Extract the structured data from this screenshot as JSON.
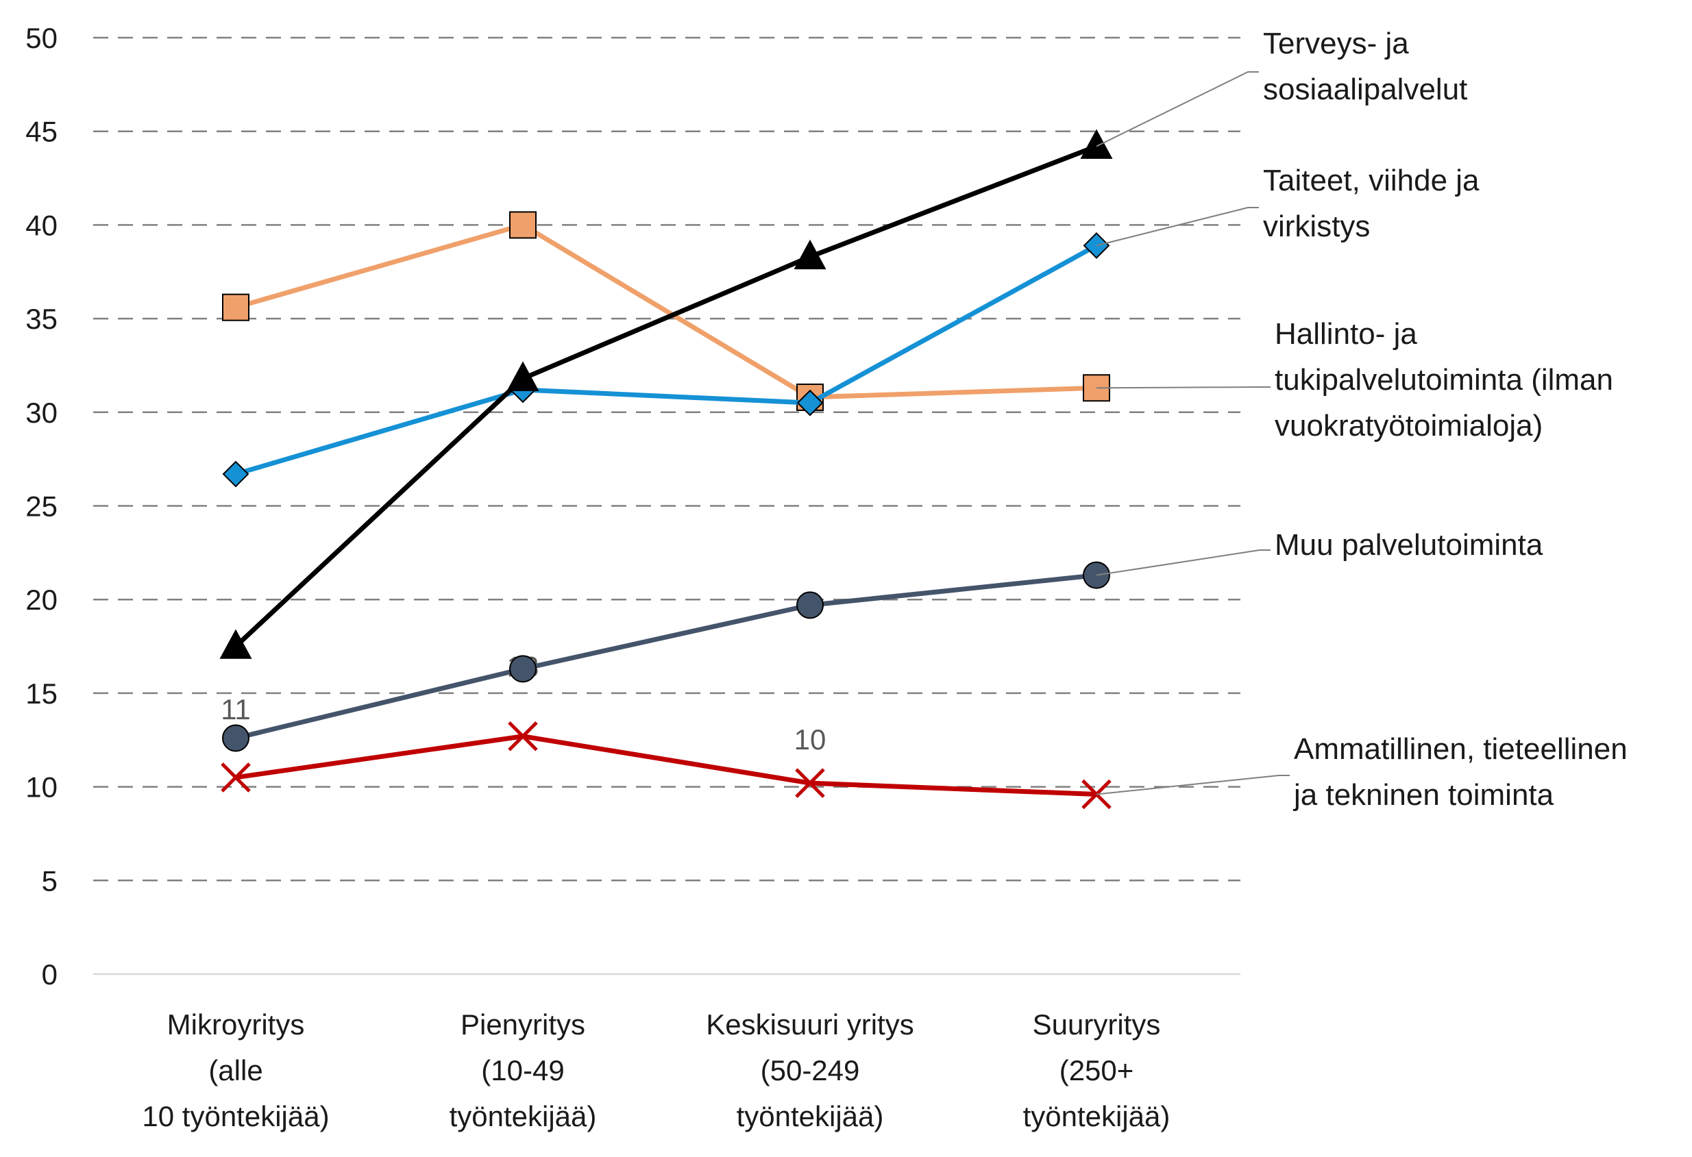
{
  "chart_data": {
    "type": "line",
    "title": "",
    "xlabel": "",
    "ylabel": "",
    "ylim": [
      0,
      50
    ],
    "yticks": [
      0,
      5,
      10,
      15,
      20,
      25,
      30,
      35,
      40,
      45,
      50
    ],
    "grid": true,
    "legend": "right (labels at line ends)",
    "categories": [
      [
        "Mikroyritys",
        "(alle",
        "10 työntekijää)"
      ],
      [
        "Pienyritys",
        "(10-49",
        "työntekijää)"
      ],
      [
        "Keskisuuri yritys",
        "(50-249",
        "työntekijää)"
      ],
      [
        "Suuryritys",
        "(250+",
        "työntekijää)"
      ]
    ],
    "series": [
      {
        "name": "Terveys- ja sosiaalipalvelut",
        "name_lines": [
          "Terveys- ja",
          "sosiaalipalvelut"
        ],
        "values": [
          17.5,
          31.8,
          38.3,
          44.2
        ],
        "color": "#000000",
        "marker": "triangle"
      },
      {
        "name": "Taiteet, viihde ja virkistys",
        "name_lines": [
          "Taiteet, viihde ja",
          "virkistys"
        ],
        "values": [
          26.7,
          31.2,
          30.5,
          38.9
        ],
        "color": "#1591D5",
        "marker": "diamond"
      },
      {
        "name": "Hallinto- ja tukipalvelutoiminta (ilman vuokratyötoimialoja)",
        "name_lines": [
          "Hallinto- ja",
          "tukipalvelutoiminta (ilman",
          "vuokratyötoimialoja)"
        ],
        "values": [
          35.6,
          40.0,
          30.8,
          31.3
        ],
        "color": "#F0A06A",
        "marker": "square"
      },
      {
        "name": "Muu palvelutoiminta",
        "name_lines": [
          "Muu palvelutoiminta"
        ],
        "values": [
          12.6,
          16.3,
          19.7,
          21.3
        ],
        "color": "#44546A",
        "marker": "circle"
      },
      {
        "name": "Ammatillinen, tieteellinen ja tekninen toiminta",
        "name_lines": [
          "Ammatillinen, tieteellinen",
          "ja tekninen toiminta"
        ],
        "values": [
          10.5,
          12.7,
          10.2,
          9.6
        ],
        "color": "#C00000",
        "marker": "x"
      }
    ],
    "annotations": [
      "11",
      "13",
      "10"
    ]
  }
}
